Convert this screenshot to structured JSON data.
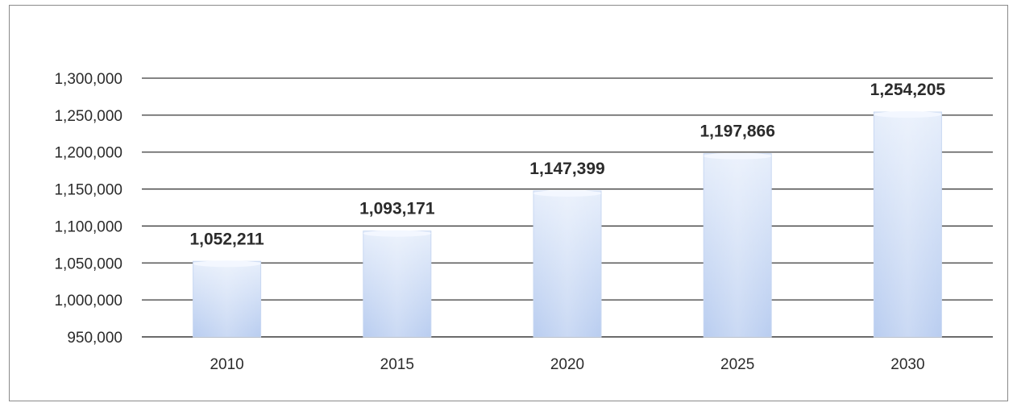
{
  "chart_data": {
    "type": "bar",
    "title": "",
    "xlabel": "",
    "ylabel": "",
    "categories": [
      "2010",
      "2015",
      "2020",
      "2025",
      "2030"
    ],
    "values": [
      1052211,
      1093171,
      1147399,
      1197866,
      1254205
    ],
    "data_labels": [
      "1,052,211",
      "1,093,171",
      "1,147,399",
      "1,197,866",
      "1,254,205"
    ],
    "ylim": [
      950000,
      1300000
    ],
    "yticks": [
      950000,
      1000000,
      1050000,
      1100000,
      1150000,
      1200000,
      1250000,
      1300000
    ],
    "ytick_labels": [
      "950,000",
      "1,000,000",
      "1,050,000",
      "1,100,000",
      "1,150,000",
      "1,200,000",
      "1,250,000",
      "1,300,000"
    ],
    "grid": true,
    "legend": "none",
    "colors": {
      "bar_fill_top": "#e6eefb",
      "bar_fill_bottom": "#b9cdf0",
      "bar_edge": "#c9d8f2",
      "gridline": "#3a3a3a"
    }
  }
}
